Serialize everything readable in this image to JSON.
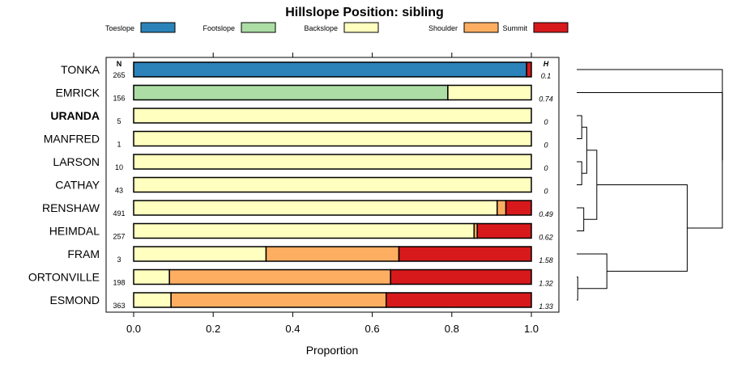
{
  "chart_data": {
    "type": "bar",
    "stacked": true,
    "orientation": "horizontal",
    "title": "Hillslope Position: sibling",
    "xlabel": "Proportion",
    "ylabel": "",
    "xlim": [
      0,
      1
    ],
    "xticks": [
      "0.0",
      "0.2",
      "0.4",
      "0.6",
      "0.8",
      "1.0"
    ],
    "xtick_values": [
      0,
      0.2,
      0.4,
      0.6,
      0.8,
      1.0
    ],
    "legend_position": "top",
    "n_header": "N",
    "h_header": "H",
    "categories": [
      "TONKA",
      "EMRICK",
      "URANDA",
      "MANFRED",
      "LARSON",
      "CATHAY",
      "RENSHAW",
      "HEIMDAL",
      "FRAM",
      "ORTONVILLE",
      "ESMOND"
    ],
    "bold_category": "URANDA",
    "n": [
      "265",
      "156",
      "5",
      "1",
      "10",
      "43",
      "491",
      "257",
      "3",
      "198",
      "363"
    ],
    "h": [
      "0.1",
      "0.74",
      "0",
      "0",
      "0",
      "0",
      "0.49",
      "0.62",
      "1.58",
      "1.32",
      "1.33"
    ],
    "series": [
      {
        "name": "Toeslope",
        "color": "#2b83ba",
        "values": [
          0.988,
          0,
          0,
          0,
          0,
          0,
          0,
          0,
          0,
          0,
          0
        ]
      },
      {
        "name": "Footslope",
        "color": "#abdda4",
        "values": [
          0,
          0.79,
          0,
          0,
          0,
          0,
          0,
          0,
          0,
          0,
          0
        ]
      },
      {
        "name": "Backslope",
        "color": "#ffffbf",
        "values": [
          0,
          0.21,
          1,
          1,
          1,
          1,
          0.914,
          0.856,
          0.333,
          0.09,
          0.094
        ]
      },
      {
        "name": "Shoulder",
        "color": "#fdae61",
        "values": [
          0,
          0,
          0,
          0,
          0,
          0,
          0.022,
          0.008,
          0.334,
          0.556,
          0.541
        ]
      },
      {
        "name": "Summit",
        "color": "#d7191c",
        "values": [
          0.012,
          0,
          0,
          0,
          0,
          0,
          0.064,
          0.136,
          0.333,
          0.354,
          0.365
        ]
      }
    ],
    "dendrogram": {
      "type": "dendrogram",
      "leaves": [
        "TONKA",
        "EMRICK",
        "URANDA",
        "MANFRED",
        "LARSON",
        "CATHAY",
        "RENSHAW",
        "HEIMDAL",
        "FRAM",
        "ORTONVILLE",
        "ESMOND"
      ],
      "merges": [
        [
          [
            "URANDA"
          ],
          [
            "MANFRED"
          ],
          0.05
        ],
        [
          [
            "LARSON"
          ],
          [
            "CATHAY"
          ],
          0.05
        ],
        [
          [
            "ORTONVILLE"
          ],
          [
            "ESMOND"
          ],
          0.01
        ],
        [
          [
            "URANDA",
            "MANFRED"
          ],
          [
            "LARSON",
            "CATHAY"
          ],
          0.1
        ],
        [
          [
            "RENSHAW"
          ],
          [
            "HEIMDAL"
          ],
          0.07
        ],
        [
          [
            "URANDA",
            "MANFRED",
            "LARSON",
            "CATHAY"
          ],
          [
            "RENSHAW",
            "HEIMDAL"
          ],
          0.2
        ],
        [
          [
            "FRAM"
          ],
          [
            "ORTONVILLE",
            "ESMOND"
          ],
          0.3
        ],
        [
          [
            "URANDA",
            "MANFRED",
            "LARSON",
            "CATHAY",
            "RENSHAW",
            "HEIMDAL"
          ],
          [
            "FRAM",
            "ORTONVILLE",
            "ESMOND"
          ],
          1.1
        ],
        [
          [
            "EMRICK"
          ],
          [
            "URANDA",
            "MANFRED",
            "LARSON",
            "CATHAY",
            "RENSHAW",
            "HEIMDAL",
            "FRAM",
            "ORTONVILLE",
            "ESMOND"
          ],
          1.45
        ],
        [
          [
            "TONKA"
          ],
          [
            "EMRICK",
            "URANDA",
            "MANFRED",
            "LARSON",
            "CATHAY",
            "RENSHAW",
            "HEIMDAL",
            "FRAM",
            "ORTONVILLE",
            "ESMOND"
          ],
          1.45
        ]
      ]
    }
  }
}
